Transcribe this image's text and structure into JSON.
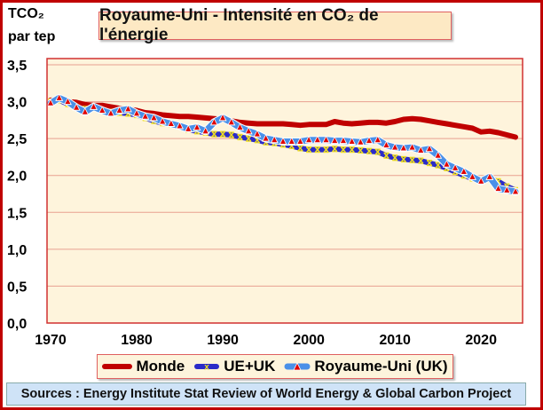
{
  "chart_data": {
    "type": "line",
    "title": "Royaume-Uni - Intensité en CO₂ de l'énergie",
    "ylabel": "TCO₂ par tep",
    "xlabel": "",
    "ylim": [
      0,
      3.5
    ],
    "xlim": [
      1970,
      2024
    ],
    "grid": true,
    "legend_position": "bottom",
    "y_ticks": [
      "0,0",
      "0,5",
      "1,0",
      "1,5",
      "2,0",
      "2,5",
      "3,0",
      "3,5"
    ],
    "y_tick_values": [
      0,
      0.5,
      1.0,
      1.5,
      2.0,
      2.5,
      3.0,
      3.5
    ],
    "x_ticks": [
      "1970",
      "1980",
      "1990",
      "2000",
      "2010",
      "2020"
    ],
    "x_tick_values": [
      1970,
      1980,
      1990,
      2000,
      2010,
      2020
    ],
    "x": [
      1970,
      1971,
      1972,
      1973,
      1974,
      1975,
      1976,
      1977,
      1978,
      1979,
      1980,
      1981,
      1982,
      1983,
      1984,
      1985,
      1986,
      1987,
      1988,
      1989,
      1990,
      1991,
      1992,
      1993,
      1994,
      1995,
      1996,
      1997,
      1998,
      1999,
      2000,
      2001,
      2002,
      2003,
      2004,
      2005,
      2006,
      2007,
      2008,
      2009,
      2010,
      2011,
      2012,
      2013,
      2014,
      2015,
      2016,
      2017,
      2018,
      2019,
      2020,
      2021,
      2022,
      2023,
      2024
    ],
    "series": [
      {
        "name": "Monde",
        "color": "#c00000",
        "values": [
          3.02,
          3.02,
          3.0,
          2.99,
          2.96,
          2.95,
          2.95,
          2.93,
          2.91,
          2.9,
          2.88,
          2.85,
          2.84,
          2.82,
          2.81,
          2.8,
          2.8,
          2.79,
          2.78,
          2.77,
          2.76,
          2.74,
          2.72,
          2.71,
          2.7,
          2.7,
          2.7,
          2.7,
          2.69,
          2.68,
          2.69,
          2.69,
          2.69,
          2.73,
          2.71,
          2.7,
          2.71,
          2.72,
          2.72,
          2.71,
          2.73,
          2.76,
          2.77,
          2.76,
          2.74,
          2.72,
          2.7,
          2.68,
          2.66,
          2.64,
          2.59,
          2.6,
          2.58,
          2.55,
          2.52
        ]
      },
      {
        "name": "UE+UK",
        "color": "#2b2bc8",
        "marker_color": "#f0e020",
        "values": [
          3.0,
          3.02,
          2.97,
          2.92,
          2.9,
          2.92,
          2.88,
          2.86,
          2.85,
          2.84,
          2.82,
          2.78,
          2.74,
          2.71,
          2.69,
          2.67,
          2.62,
          2.6,
          2.58,
          2.56,
          2.56,
          2.55,
          2.52,
          2.5,
          2.48,
          2.45,
          2.44,
          2.42,
          2.4,
          2.37,
          2.35,
          2.35,
          2.35,
          2.36,
          2.35,
          2.35,
          2.34,
          2.33,
          2.32,
          2.27,
          2.24,
          2.22,
          2.21,
          2.2,
          2.17,
          2.14,
          2.1,
          2.05,
          2.0,
          1.96,
          1.93,
          1.95,
          1.92,
          1.85,
          1.8
        ]
      },
      {
        "name": "Royaume-Uni (UK)",
        "color": "#4a90e8",
        "marker_color": "#e00000",
        "values": [
          2.98,
          3.05,
          3.0,
          2.92,
          2.86,
          2.93,
          2.88,
          2.84,
          2.88,
          2.9,
          2.84,
          2.8,
          2.78,
          2.73,
          2.7,
          2.67,
          2.63,
          2.65,
          2.6,
          2.72,
          2.78,
          2.72,
          2.65,
          2.6,
          2.56,
          2.5,
          2.48,
          2.46,
          2.46,
          2.46,
          2.48,
          2.48,
          2.48,
          2.47,
          2.47,
          2.46,
          2.45,
          2.47,
          2.48,
          2.41,
          2.38,
          2.37,
          2.38,
          2.34,
          2.36,
          2.27,
          2.15,
          2.1,
          2.05,
          1.98,
          1.92,
          1.98,
          1.82,
          1.8,
          1.78
        ]
      }
    ]
  },
  "axis": {
    "unit_line1": "TCO₂",
    "unit_line2": "par tep"
  },
  "legend": {
    "items": [
      "Monde",
      "UE+UK",
      "Royaume-Uni (UK)"
    ]
  },
  "sources": "Sources : Energy Institute Stat Review of World Energy & Global Carbon Project",
  "colors": {
    "plot_bg": "#fef4dc",
    "grid": "#e8a090",
    "frame": "#c00000"
  }
}
